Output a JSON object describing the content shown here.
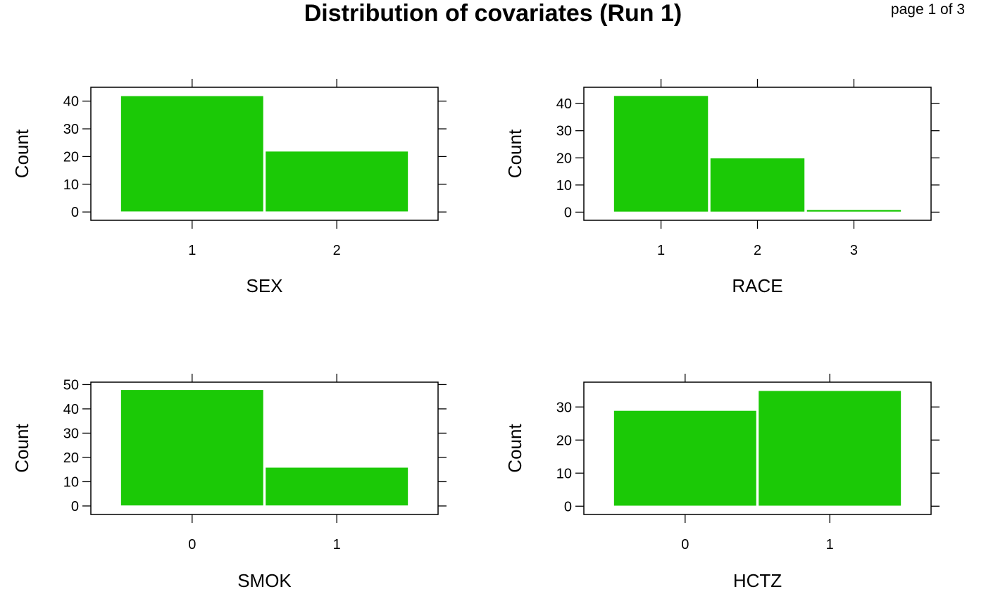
{
  "title": "Distribution of covariates (Run 1)",
  "page_label": "page 1 of 3",
  "bar_color": "#1BC906",
  "chart_data": [
    {
      "type": "bar",
      "xlabel": "SEX",
      "ylabel": "Count",
      "categories": [
        "1",
        "2"
      ],
      "values": [
        42,
        22
      ],
      "yticks": [
        0,
        10,
        20,
        30,
        40
      ],
      "ylim": [
        -3,
        45
      ]
    },
    {
      "type": "bar",
      "xlabel": "RACE",
      "ylabel": "Count",
      "categories": [
        "1",
        "2",
        "3"
      ],
      "values": [
        43,
        20,
        1
      ],
      "yticks": [
        0,
        10,
        20,
        30,
        40
      ],
      "ylim": [
        -3,
        46
      ]
    },
    {
      "type": "bar",
      "xlabel": "SMOK",
      "ylabel": "Count",
      "categories": [
        "0",
        "1"
      ],
      "values": [
        48,
        16
      ],
      "yticks": [
        0,
        10,
        20,
        30,
        40,
        50
      ],
      "ylim": [
        -3.5,
        51
      ]
    },
    {
      "type": "bar",
      "xlabel": "HCTZ",
      "ylabel": "Count",
      "categories": [
        "0",
        "1"
      ],
      "values": [
        29,
        35
      ],
      "yticks": [
        0,
        10,
        20,
        30
      ],
      "ylim": [
        -2.5,
        37.5
      ]
    }
  ]
}
